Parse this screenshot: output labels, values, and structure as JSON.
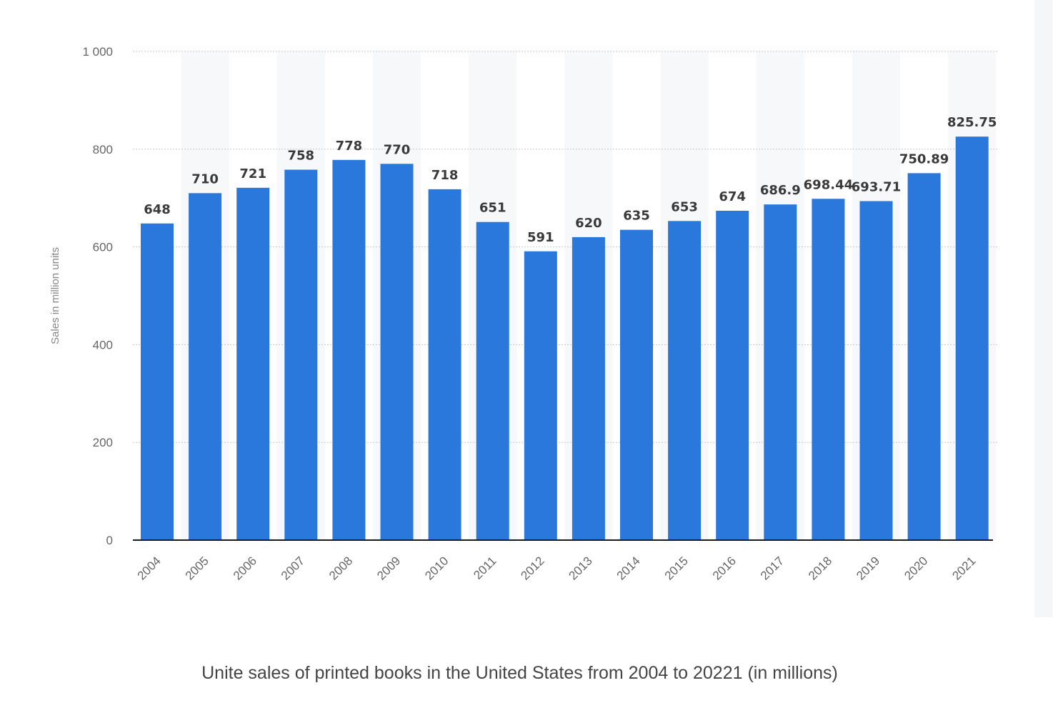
{
  "chart_data": {
    "type": "bar",
    "ylabel": "Sales in million units",
    "ylim": [
      0,
      1000
    ],
    "yticks": [
      0,
      200,
      400,
      600,
      800,
      1000
    ],
    "ytick_labels": [
      "0",
      "200",
      "400",
      "600",
      "800",
      "1 000"
    ],
    "categories": [
      "2004",
      "2005",
      "2006",
      "2007",
      "2008",
      "2009",
      "2010",
      "2011",
      "2012",
      "2013",
      "2014",
      "2015",
      "2016",
      "2017",
      "2018",
      "2019",
      "2020",
      "2021"
    ],
    "values": [
      648,
      710,
      721,
      758,
      778,
      770,
      718,
      651,
      591,
      620,
      635,
      653,
      674,
      686.9,
      698.44,
      693.71,
      750.89,
      825.75
    ],
    "value_labels": [
      "648",
      "710",
      "721",
      "758",
      "778",
      "770",
      "718",
      "651",
      "591",
      "620",
      "635",
      "653",
      "674",
      "686.9",
      "698.44",
      "693.71",
      "750.89",
      "825.75"
    ],
    "bar_color": "#2a78dc",
    "grid": true
  },
  "caption": "Unite sales of printed books in the United States from 2004 to 20221 (in millions)"
}
